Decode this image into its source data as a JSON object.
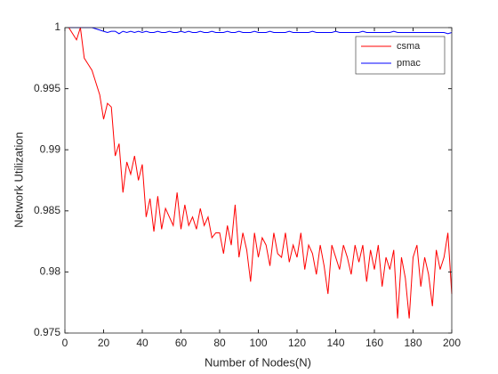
{
  "chart_data": {
    "type": "line",
    "xlabel": "Number of Nodes(N)",
    "ylabel": "Network Utilization",
    "x": [
      2,
      4,
      6,
      8,
      10,
      12,
      14,
      16,
      18,
      20,
      22,
      24,
      26,
      28,
      30,
      32,
      34,
      36,
      38,
      40,
      42,
      44,
      46,
      48,
      50,
      52,
      54,
      56,
      58,
      60,
      62,
      64,
      66,
      68,
      70,
      72,
      74,
      76,
      78,
      80,
      82,
      84,
      86,
      88,
      90,
      92,
      94,
      96,
      98,
      100,
      102,
      104,
      106,
      108,
      110,
      112,
      114,
      116,
      118,
      120,
      122,
      124,
      126,
      128,
      130,
      132,
      134,
      136,
      138,
      140,
      142,
      144,
      146,
      148,
      150,
      152,
      154,
      156,
      158,
      160,
      162,
      164,
      166,
      168,
      170,
      172,
      174,
      176,
      178,
      180,
      182,
      184,
      186,
      188,
      190,
      192,
      194,
      196,
      198,
      200
    ],
    "series": [
      {
        "name": "csma",
        "color": "#ff0000",
        "values": [
          1,
          0.9995,
          0.999,
          1,
          0.9975,
          0.997,
          0.9965,
          0.9955,
          0.9945,
          0.9925,
          0.9938,
          0.9935,
          0.9895,
          0.9905,
          0.9865,
          0.989,
          0.988,
          0.9895,
          0.9875,
          0.9888,
          0.9845,
          0.986,
          0.9833,
          0.9862,
          0.9835,
          0.9852,
          0.9845,
          0.9838,
          0.9865,
          0.9835,
          0.9855,
          0.9838,
          0.9845,
          0.9835,
          0.9852,
          0.9838,
          0.9845,
          0.9828,
          0.9832,
          0.9832,
          0.9815,
          0.9838,
          0.9822,
          0.9855,
          0.9812,
          0.9832,
          0.9818,
          0.9792,
          0.9832,
          0.9812,
          0.9828,
          0.9822,
          0.9805,
          0.9832,
          0.9815,
          0.9812,
          0.9832,
          0.9808,
          0.9822,
          0.9812,
          0.9832,
          0.9802,
          0.9822,
          0.9815,
          0.9798,
          0.9822,
          0.9805,
          0.9782,
          0.9822,
          0.9812,
          0.9802,
          0.9822,
          0.9812,
          0.9798,
          0.9822,
          0.9808,
          0.9822,
          0.9792,
          0.9818,
          0.9802,
          0.9822,
          0.9788,
          0.9812,
          0.9802,
          0.9818,
          0.9762,
          0.9812,
          0.9795,
          0.9762,
          0.9812,
          0.9822,
          0.9788,
          0.9812,
          0.9798,
          0.9772,
          0.9818,
          0.9802,
          0.9812,
          0.9832,
          0.9782
        ]
      },
      {
        "name": "pmac",
        "color": "#0000ff",
        "values": [
          1,
          1,
          1,
          1,
          1,
          1,
          1,
          0.9999,
          0.9998,
          0.9997,
          0.9996,
          0.9997,
          0.9997,
          0.9995,
          0.9997,
          0.9996,
          0.9997,
          0.9996,
          0.9997,
          0.9996,
          0.9997,
          0.9996,
          0.9996,
          0.9997,
          0.9996,
          0.9996,
          0.9997,
          0.9996,
          0.9996,
          0.9997,
          0.9996,
          0.9997,
          0.9996,
          0.9996,
          0.9997,
          0.9996,
          0.9996,
          0.9997,
          0.9996,
          0.9996,
          0.9996,
          0.9997,
          0.9996,
          0.9996,
          0.9997,
          0.9996,
          0.9996,
          0.9996,
          0.9997,
          0.9996,
          0.9996,
          0.9996,
          0.9997,
          0.9996,
          0.9996,
          0.9996,
          0.9996,
          0.9997,
          0.9996,
          0.9996,
          0.9996,
          0.9996,
          0.9996,
          0.9997,
          0.9996,
          0.9996,
          0.9996,
          0.9996,
          0.9996,
          0.9997,
          0.9996,
          0.9996,
          0.9996,
          0.9996,
          0.9996,
          0.9996,
          0.9997,
          0.9996,
          0.9996,
          0.9996,
          0.9996,
          0.9996,
          0.9996,
          0.9996,
          0.9997,
          0.9996,
          0.9996,
          0.9996,
          0.9996,
          0.9996,
          0.9996,
          0.9996,
          0.9996,
          0.9996,
          0.9996,
          0.9996,
          0.9996,
          0.9996,
          0.9995,
          0.9996
        ]
      }
    ],
    "xlim": [
      0,
      200
    ],
    "xticks": [
      0,
      20,
      40,
      60,
      80,
      100,
      120,
      140,
      160,
      180,
      200
    ],
    "ylim": [
      0.975,
      1
    ],
    "yticks": [
      0.975,
      0.98,
      0.985,
      0.99,
      0.995,
      1
    ],
    "legend": "northeast"
  }
}
